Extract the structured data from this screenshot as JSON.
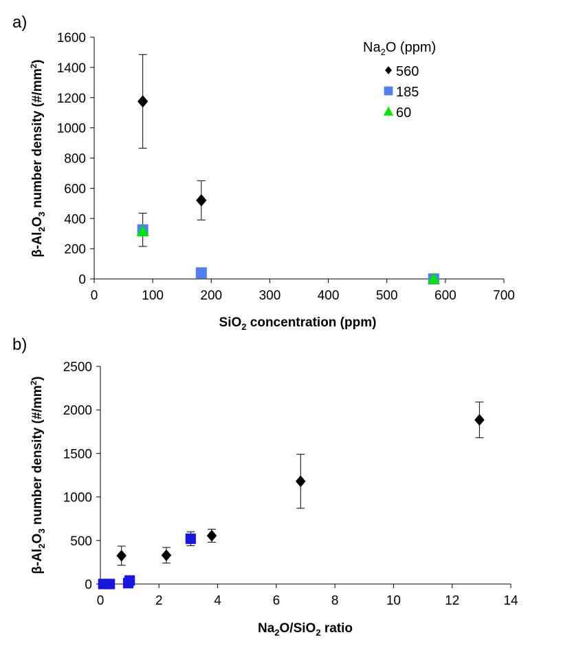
{
  "chart_data": [
    {
      "panel_label": "a)",
      "type": "scatter",
      "xlabel": {
        "pre": "SiO",
        "sub": "2",
        "post": " concentration (ppm)"
      },
      "ylabel": {
        "p1": "β-Al",
        "s1": "2",
        "p2": "O",
        "s2": "3",
        "p3": " number density (#/mm",
        "sup": "2",
        "p4": ")"
      },
      "xlim": [
        0,
        700
      ],
      "ylim": [
        0,
        1600
      ],
      "xticks": [
        0,
        100,
        200,
        300,
        400,
        500,
        600,
        700
      ],
      "yticks": [
        0,
        200,
        400,
        600,
        800,
        1000,
        1200,
        1400,
        1600
      ],
      "grid": false,
      "legend": {
        "title": {
          "pre": "Na",
          "sub": "2",
          "post": "O (ppm)"
        },
        "placement": "top-right"
      },
      "series": [
        {
          "name": "560",
          "marker": "diamond",
          "color": "#000000",
          "points": [
            {
              "x": 83,
              "y": 1175,
              "err": 310
            },
            {
              "x": 183,
              "y": 520,
              "err": 130
            }
          ]
        },
        {
          "name": "185",
          "marker": "square",
          "color": "#4f7ff0",
          "points": [
            {
              "x": 83,
              "y": 325,
              "err": 110
            },
            {
              "x": 183,
              "y": 40
            },
            {
              "x": 580,
              "y": 0
            }
          ]
        },
        {
          "name": "60",
          "marker": "triangle",
          "color": "#00e400",
          "points": [
            {
              "x": 83,
              "y": 315
            },
            {
              "x": 580,
              "y": 0
            }
          ]
        }
      ]
    },
    {
      "panel_label": "b)",
      "type": "scatter",
      "xlabel": {
        "p1": "Na",
        "s1": "2",
        "p2": "O/SiO",
        "s2": "2",
        "p3": " ratio"
      },
      "ylabel": {
        "p1": "β-Al",
        "s1": "2",
        "p2": "O",
        "s2": "3",
        "p3": " number density (#/mm",
        "sup": "2",
        "p4": ")"
      },
      "xlim": [
        0,
        14
      ],
      "ylim": [
        0,
        2500
      ],
      "xticks": [
        0,
        2,
        4,
        6,
        8,
        10,
        12,
        14
      ],
      "yticks": [
        0,
        500,
        1000,
        1500,
        2000,
        2500
      ],
      "grid": false,
      "series": [
        {
          "marker": "diamond",
          "color": "#000000",
          "points": [
            {
              "x": 0.72,
              "y": 325,
              "err": 110
            },
            {
              "x": 2.25,
              "y": 330,
              "err": 90
            },
            {
              "x": 3.8,
              "y": 555,
              "err": 75
            },
            {
              "x": 6.83,
              "y": 1180,
              "err": 310
            },
            {
              "x": 12.93,
              "y": 1885,
              "err": 205
            }
          ]
        },
        {
          "marker": "square",
          "color": "#1616e0",
          "points": [
            {
              "x": 0.1,
              "y": 0
            },
            {
              "x": 0.32,
              "y": 0
            },
            {
              "x": 0.95,
              "y": 10
            },
            {
              "x": 1.0,
              "y": 40
            },
            {
              "x": 3.08,
              "y": 520,
              "err": 80
            }
          ]
        }
      ]
    }
  ]
}
